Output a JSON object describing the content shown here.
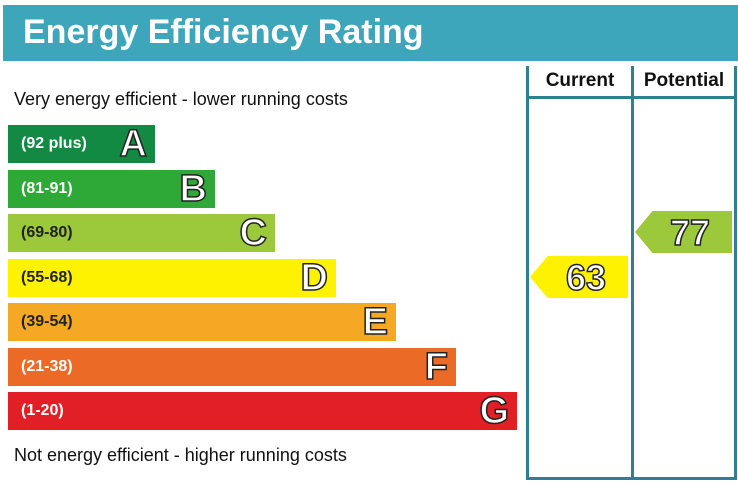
{
  "title": "Energy Efficiency Rating",
  "top_note": "Very energy efficient - lower running costs",
  "bottom_note": "Not energy efficient - higher running costs",
  "columns": {
    "current": "Current",
    "potential": "Potential"
  },
  "chart_data": {
    "type": "bar",
    "title": "Energy Efficiency Rating",
    "categories": [
      "A",
      "B",
      "C",
      "D",
      "E",
      "F",
      "G"
    ],
    "ranges": [
      "(92 plus)",
      "(81-91)",
      "(69-80)",
      "(55-68)",
      "(39-54)",
      "(21-38)",
      "(1-20)"
    ],
    "colors": [
      "#128a44",
      "#2ea836",
      "#9cc83b",
      "#fff200",
      "#f4a823",
      "#ea6a26",
      "#e21f26"
    ],
    "current": {
      "value": "63",
      "band": "D",
      "color": "#fff200"
    },
    "potential": {
      "value": "77",
      "band": "C",
      "color": "#9cc83b"
    }
  }
}
